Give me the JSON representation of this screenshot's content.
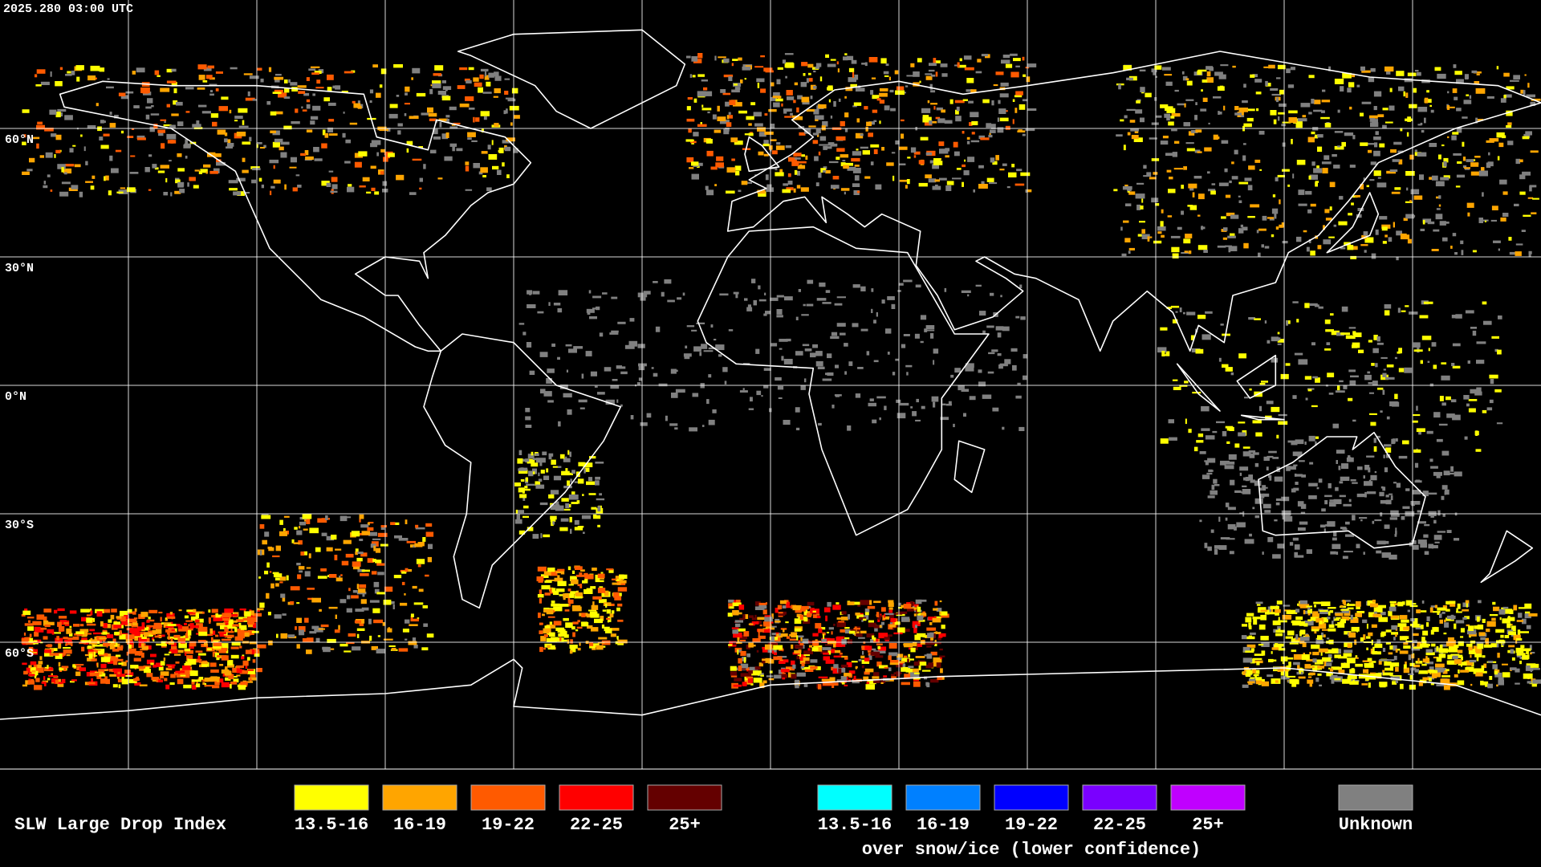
{
  "header": {
    "timestamp": "2025.280 03:00 UTC"
  },
  "map": {
    "latitude_labels": [
      "60°N",
      "30°N",
      "0°N",
      "30°S",
      "60°S"
    ]
  },
  "legend": {
    "title": "SLW Large Drop Index",
    "groups": [
      {
        "items": [
          {
            "label": "13.5-16",
            "color": "#ffff00"
          },
          {
            "label": "16-19",
            "color": "#ffa500"
          },
          {
            "label": "19-22",
            "color": "#ff5a00"
          },
          {
            "label": "22-25",
            "color": "#ff0000"
          },
          {
            "label": "25+",
            "color": "#640000"
          }
        ]
      },
      {
        "items": [
          {
            "label": "13.5-16",
            "color": "#00ffff"
          },
          {
            "label": "16-19",
            "color": "#0080ff"
          },
          {
            "label": "19-22",
            "color": "#0000ff"
          },
          {
            "label": "22-25",
            "color": "#7a00ff"
          },
          {
            "label": "25+",
            "color": "#c000ff"
          }
        ],
        "note": "over snow/ice (lower confidence)"
      },
      {
        "items": [
          {
            "label": "Unknown",
            "color": "#808080"
          }
        ]
      }
    ]
  }
}
